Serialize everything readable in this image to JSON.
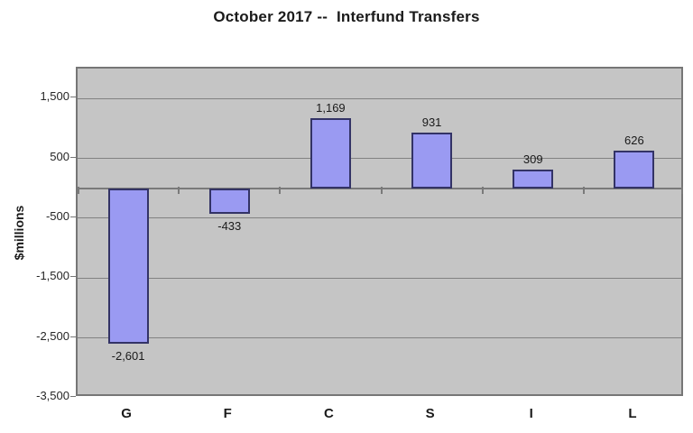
{
  "chart_data": {
    "type": "bar",
    "title": "October 2017 --  Interfund Transfers",
    "ylabel": "$millions",
    "xlabel": "",
    "categories": [
      "G",
      "F",
      "C",
      "S",
      "I",
      "L"
    ],
    "values": [
      -2601,
      -433,
      1169,
      931,
      309,
      626
    ],
    "value_labels": [
      "-2,601",
      "-433",
      "1,169",
      "931",
      "309",
      "626"
    ],
    "ylim": [
      -3500,
      2000
    ],
    "yticks": [
      {
        "value": 1500,
        "label": "1,500"
      },
      {
        "value": 500,
        "label": "500"
      },
      {
        "value": -500,
        "label": "-500"
      },
      {
        "value": -1500,
        "label": "-1,500"
      },
      {
        "value": -2500,
        "label": "-2,500"
      },
      {
        "value": -3500,
        "label": "-3,500"
      }
    ],
    "grid": "horizontal-major",
    "legend": "none",
    "colors": {
      "bar_fill": "#9A9AF2",
      "bar_border": "#333366",
      "plot_bg": "#C5C5C5",
      "plot_border": "#767676",
      "gridline": "#828282",
      "zero_line": "#7A7A7A",
      "text": "#1A1A1A",
      "page_bg": "#FFFFFF"
    }
  }
}
